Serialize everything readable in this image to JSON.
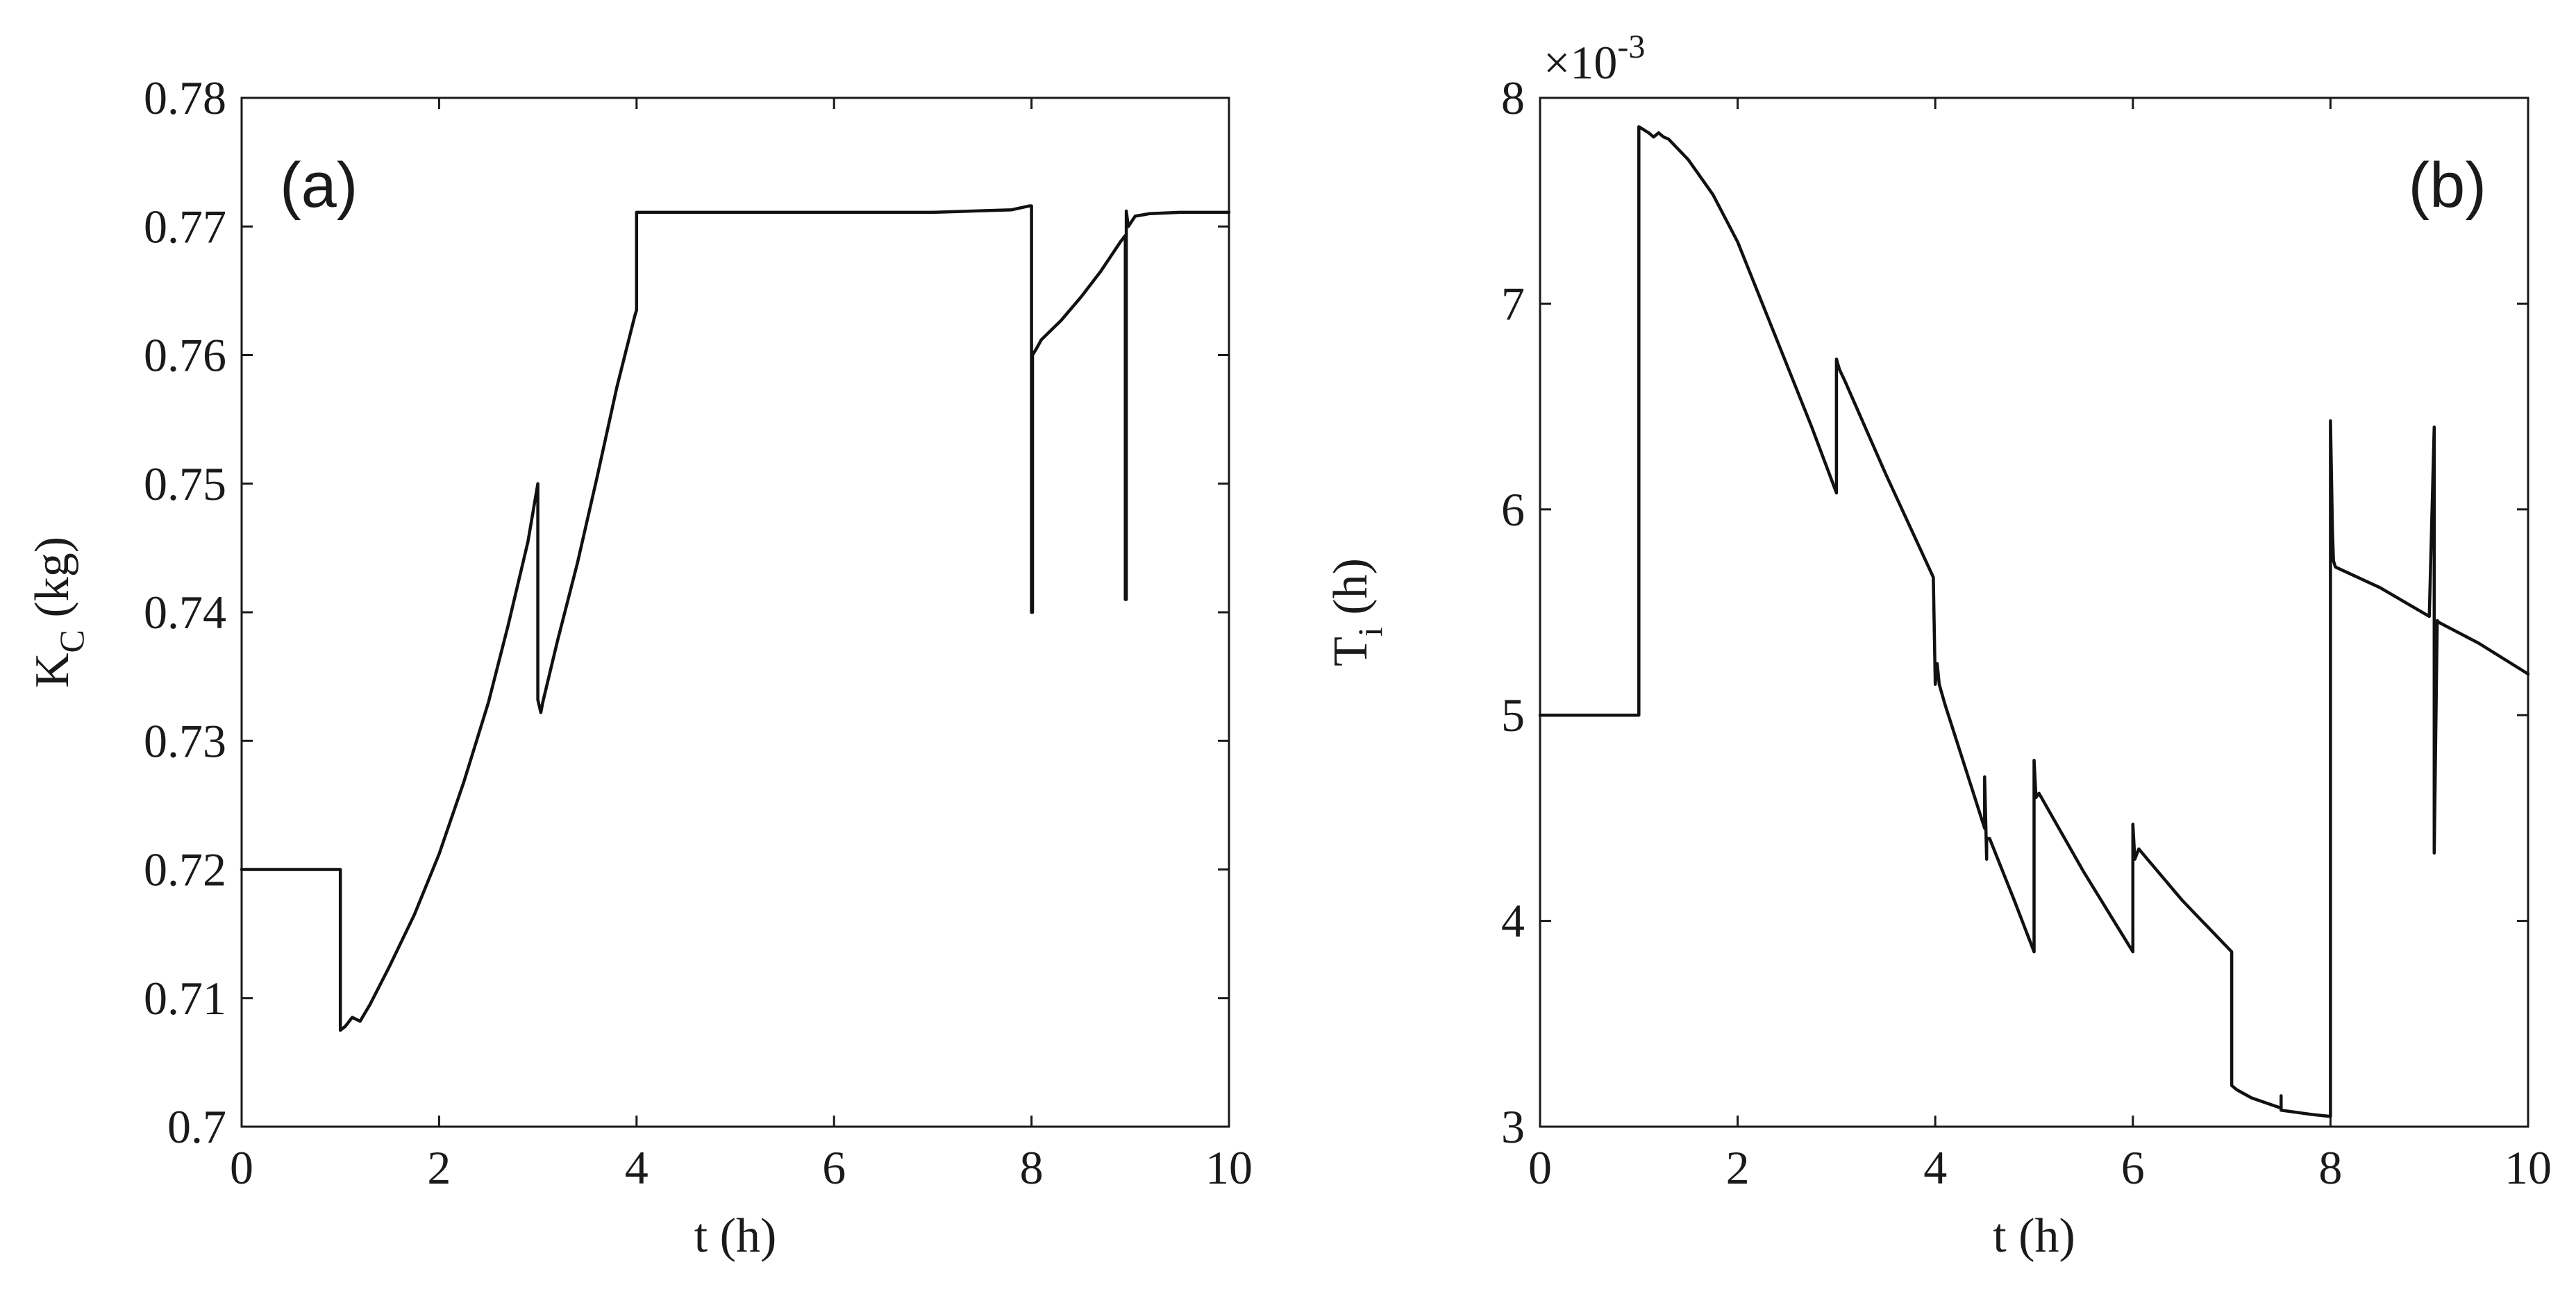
{
  "chart_data": [
    {
      "type": "line",
      "panel_label": "(a)",
      "title": "",
      "xlabel": "t (h)",
      "ylabel": "K",
      "ylabel_subscript": "C",
      "ylabel_suffix": " (kg)",
      "xlim": [
        0,
        10
      ],
      "ylim": [
        0.7,
        0.78
      ],
      "xticks": [
        0,
        2,
        4,
        6,
        8,
        10
      ],
      "xtick_labels": [
        "0",
        "2",
        "4",
        "6",
        "8",
        "10"
      ],
      "yticks": [
        0.7,
        0.71,
        0.72,
        0.73,
        0.74,
        0.75,
        0.76,
        0.77,
        0.78
      ],
      "ytick_labels": [
        "0.7",
        "0.71",
        "0.72",
        "0.73",
        "0.74",
        "0.75",
        "0.76",
        "0.77",
        "0.78"
      ],
      "grid": false,
      "legend": "none",
      "color": "#111111",
      "series": [
        {
          "x": [
            0,
            1,
            1,
            1.05,
            1.12,
            1.2,
            1.3,
            1.5,
            1.75,
            2,
            2.25,
            2.5,
            2.7,
            2.9,
            3,
            3,
            3.03,
            3.05,
            3.2,
            3.4,
            3.6,
            3.8,
            3.98,
            4,
            4,
            5,
            6,
            7,
            7.8,
            7.98,
            8,
            8,
            8.01,
            8.01,
            8.05,
            8.1,
            8.3,
            8.5,
            8.7,
            8.9,
            8.95,
            8.95,
            8.96,
            8.96,
            8.98,
            9.05,
            9.2,
            9.5,
            10
          ],
          "y": [
            0.72,
            0.72,
            0.7075,
            0.7078,
            0.7085,
            0.7082,
            0.7095,
            0.7125,
            0.7165,
            0.7212,
            0.7268,
            0.733,
            0.739,
            0.7455,
            0.75,
            0.7332,
            0.7322,
            0.733,
            0.7378,
            0.7438,
            0.7505,
            0.7575,
            0.763,
            0.7635,
            0.7711,
            0.7711,
            0.7711,
            0.7711,
            0.7713,
            0.7716,
            0.7716,
            0.74,
            0.74,
            0.76,
            0.7605,
            0.7612,
            0.7627,
            0.7645,
            0.7665,
            0.7688,
            0.7693,
            0.741,
            0.741,
            0.7712,
            0.77,
            0.7708,
            0.771,
            0.7711,
            0.7711
          ]
        }
      ]
    },
    {
      "type": "line",
      "panel_label": "(b)",
      "title": "",
      "xlabel": "t (h)",
      "ylabel": "T",
      "ylabel_subscript": "i",
      "ylabel_suffix": " (h)",
      "axis_multiplier": "×10",
      "axis_multiplier_exponent": "-3",
      "xlim": [
        0,
        10
      ],
      "ylim": [
        3,
        8
      ],
      "xticks": [
        0,
        2,
        4,
        6,
        8,
        10
      ],
      "xtick_labels": [
        "0",
        "2",
        "4",
        "6",
        "8",
        "10"
      ],
      "yticks": [
        3,
        4,
        5,
        6,
        7,
        8
      ],
      "ytick_labels": [
        "3",
        "4",
        "5",
        "6",
        "7",
        "8"
      ],
      "grid": false,
      "legend": "none",
      "color": "#111111",
      "series": [
        {
          "x": [
            0,
            1,
            1,
            1.1,
            1.15,
            1.2,
            1.25,
            1.3,
            1.5,
            1.75,
            2,
            2.25,
            2.5,
            2.75,
            3,
            3,
            3.03,
            3.08,
            3.5,
            3.98,
            4,
            4.02,
            4.04,
            4.1,
            4.3,
            4.5,
            4.5,
            4.52,
            4.52,
            4.55,
            4.8,
            5,
            5,
            5.02,
            5.05,
            5.5,
            6,
            6,
            6.02,
            6.06,
            6.5,
            7,
            7,
            7.05,
            7.2,
            7.5,
            7.5,
            7.5,
            7.8,
            8,
            8,
            8.02,
            8.03,
            8.05,
            8.5,
            9,
            9.05,
            9.05,
            9.08,
            9.08,
            9.1,
            9.5,
            10
          ],
          "y": [
            5,
            5,
            7.86,
            7.83,
            7.81,
            7.83,
            7.81,
            7.8,
            7.7,
            7.53,
            7.3,
            7.0,
            6.7,
            6.4,
            6.08,
            6.73,
            6.68,
            6.63,
            6.17,
            5.67,
            5.15,
            5.25,
            5.15,
            5.05,
            4.75,
            4.45,
            4.7,
            4.3,
            4.4,
            4.4,
            4.1,
            3.85,
            4.78,
            4.6,
            4.62,
            4.24,
            3.85,
            4.47,
            4.3,
            4.35,
            4.1,
            3.85,
            3.2,
            3.18,
            3.14,
            3.09,
            3.15,
            3.08,
            3.06,
            3.05,
            6.43,
            5.9,
            5.75,
            5.72,
            5.62,
            5.48,
            6.4,
            4.33,
            5.45,
            5.46,
            5.45,
            5.35,
            5.2
          ]
        }
      ]
    }
  ]
}
